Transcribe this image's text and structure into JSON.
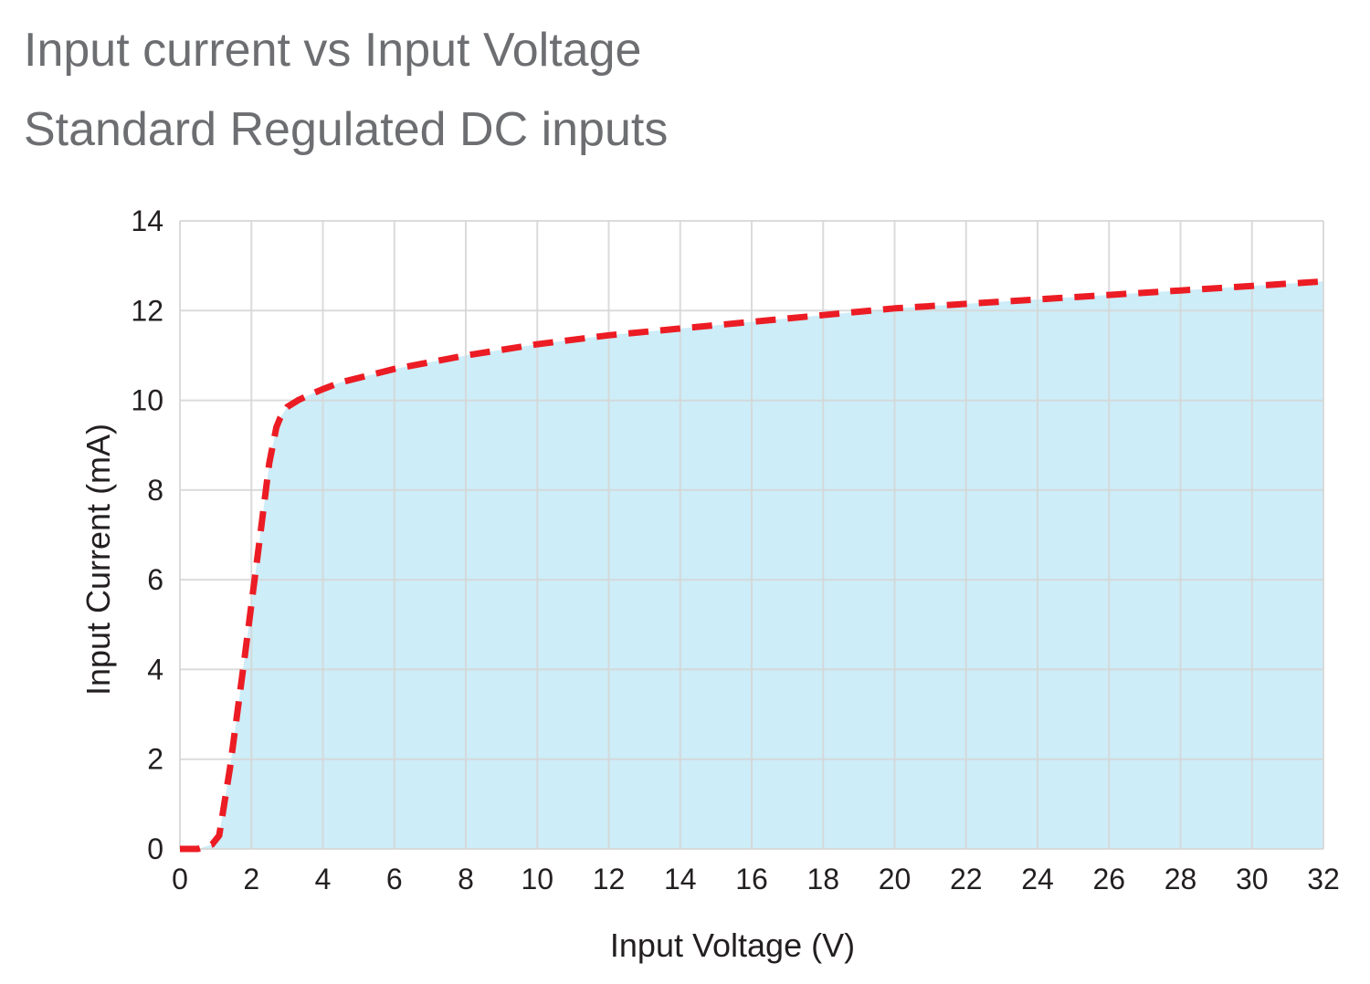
{
  "header": {
    "title": "Input current vs Input Voltage",
    "subtitle": "Standard Regulated DC inputs"
  },
  "colors": {
    "title_text": "#6d6e71",
    "area_fill": "#cdedf8",
    "curve": "#ec1c24",
    "grid": "#d5d5d5",
    "axis_text": "#231f20"
  },
  "chart_data": {
    "type": "area",
    "title": "Input current vs Input Voltage",
    "subtitle": "Standard Regulated DC inputs",
    "xlabel": "Input Voltage (V)",
    "ylabel": "Input Current (mA)",
    "xlim": [
      0,
      32
    ],
    "ylim": [
      0,
      14
    ],
    "x_ticks": [
      0,
      2,
      4,
      6,
      8,
      10,
      12,
      14,
      16,
      18,
      20,
      22,
      24,
      26,
      28,
      30,
      32
    ],
    "y_ticks": [
      0,
      2,
      4,
      6,
      8,
      10,
      12,
      14
    ],
    "grid": true,
    "legend": "none",
    "series": [
      {
        "style": "dashed",
        "x": [
          0,
          0.5,
          0.9,
          1.1,
          1.4,
          1.8,
          2.2,
          2.5,
          2.7,
          2.8,
          3.0,
          3.3,
          3.7,
          4.0,
          4.5,
          5,
          6,
          7,
          8,
          10,
          12,
          14,
          16,
          18,
          20,
          22,
          24,
          26,
          28,
          30,
          32
        ],
        "y": [
          0,
          0,
          0.1,
          0.3,
          1.8,
          4.2,
          6.7,
          8.6,
          9.4,
          9.6,
          9.85,
          10.0,
          10.15,
          10.25,
          10.4,
          10.5,
          10.7,
          10.85,
          11.0,
          11.25,
          11.45,
          11.6,
          11.75,
          11.9,
          12.05,
          12.15,
          12.25,
          12.35,
          12.45,
          12.55,
          12.65
        ]
      }
    ]
  }
}
